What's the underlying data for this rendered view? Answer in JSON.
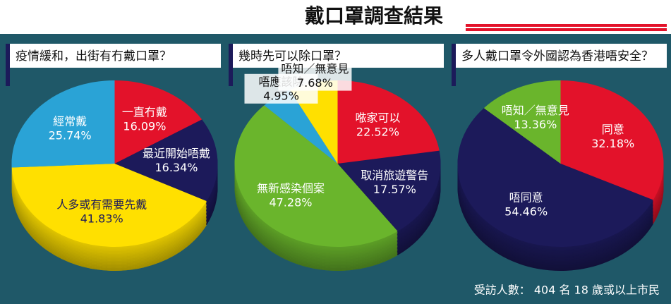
{
  "title": "戴口罩調查結果",
  "note": "受訪人數： 404 名 18 歲或以上市民",
  "chart_data": [
    {
      "type": "pie",
      "title": "疫情緩和，出街有冇戴口罩？",
      "categories": [
        "一直冇戴",
        "最近開始唔戴",
        "人多或有需要先戴",
        "經常戴"
      ],
      "values": [
        16.09,
        16.34,
        41.83,
        25.74
      ],
      "value_labels": [
        "16.09%",
        "16.34%",
        "41.83%",
        "25.74%"
      ],
      "colors": [
        "#e3122a",
        "#1c1a5a",
        "#ffe000",
        "#2aa3d6"
      ]
    },
    {
      "type": "pie",
      "title": "幾時先可以除口罩？",
      "categories": [
        "𠵱家可以",
        "取消旅遊警告",
        "無新感染個案",
        "唔應該除",
        "唔知／無意見"
      ],
      "values": [
        22.52,
        17.57,
        47.28,
        4.95,
        7.68
      ],
      "value_labels": [
        "22.52%",
        "17.57%",
        "47.28%",
        "4.95%",
        "7.68%"
      ],
      "colors": [
        "#e3122a",
        "#1c1a5a",
        "#6ab52c",
        "#2aa3d6",
        "#ffe000"
      ]
    },
    {
      "type": "pie",
      "title": "多人戴口罩令外國認為香港唔安全？",
      "categories": [
        "同意",
        "唔同意",
        "唔知／無意見"
      ],
      "values": [
        32.18,
        54.46,
        13.36
      ],
      "value_labels": [
        "32.18%",
        "54.46%",
        "13.36%"
      ],
      "colors": [
        "#e3122a",
        "#1c1a5a",
        "#6ab52c"
      ]
    }
  ]
}
